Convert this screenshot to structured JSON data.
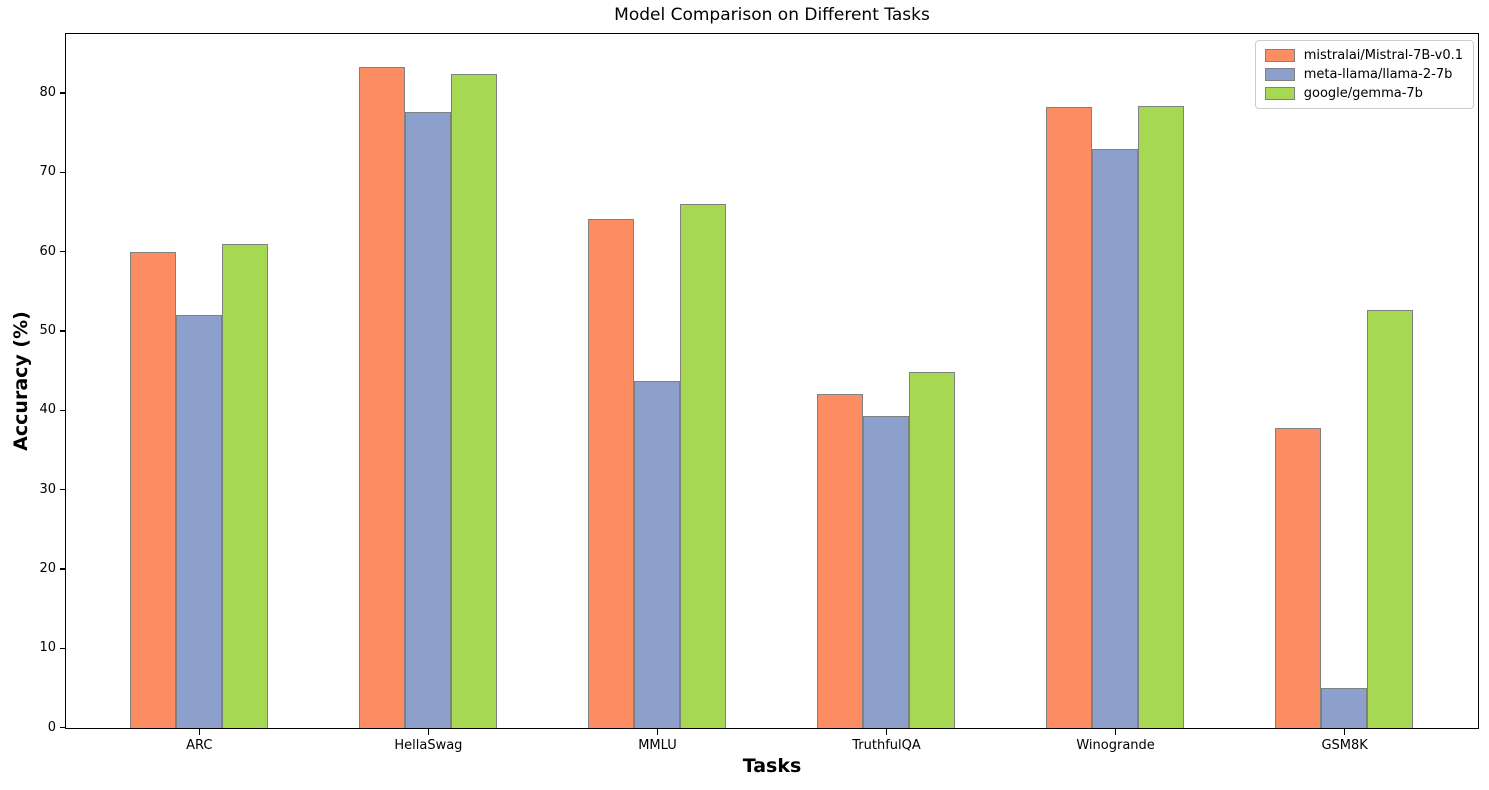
{
  "chart_data": {
    "type": "bar",
    "title": "Model Comparison on Different Tasks",
    "xlabel": "Tasks",
    "ylabel": "Accuracy (%)",
    "categories": [
      "ARC",
      "HellaSwag",
      "MMLU",
      "TruthfulQA",
      "Winogrande",
      "GSM8K"
    ],
    "series": [
      {
        "name": "mistralai/Mistral-7B-v0.1",
        "color": "#fc8d62",
        "values": [
          59.98,
          83.31,
          64.16,
          42.15,
          78.37,
          37.83
        ]
      },
      {
        "name": "meta-llama/llama-2-7b",
        "color": "#8da0cb",
        "values": [
          52.1,
          77.7,
          43.8,
          39.3,
          73.0,
          5.0
        ]
      },
      {
        "name": "google/gemma-7b",
        "color": "#a6d854",
        "values": [
          61.09,
          82.47,
          66.03,
          44.91,
          78.45,
          52.77
        ]
      }
    ],
    "ylim": [
      0,
      87.4
    ],
    "yticks": [
      0,
      10,
      20,
      30,
      40,
      50,
      60,
      70,
      80
    ],
    "x_range": [
      -0.58,
      5.58
    ],
    "bar_width_fraction": 0.2,
    "bar_edge_color": "#808080",
    "spine_color": "#000000",
    "legend_position": "upper right",
    "legend_edge_color": "#cccccc",
    "grid": false
  }
}
